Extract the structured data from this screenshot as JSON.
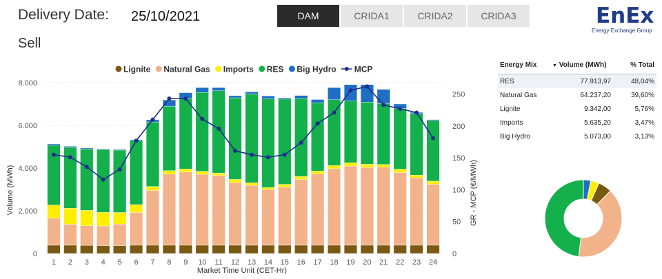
{
  "header": {
    "delivery_label": "Delivery Date:",
    "delivery_date": "25/10/2021",
    "market_side": "Sell"
  },
  "tabs": [
    {
      "label": "DAM",
      "active": true
    },
    {
      "label": "CRIDA1",
      "active": false
    },
    {
      "label": "CRIDA2",
      "active": false
    },
    {
      "label": "CRIDA3",
      "active": false
    }
  ],
  "logo": {
    "word": "EnEx",
    "tagline": "Energy Exchange Group"
  },
  "colors": {
    "lignite": "#7a5a12",
    "natural_gas": "#f2b28a",
    "imports": "#ffee00",
    "res": "#13b04c",
    "big_hydro": "#1e6fc4",
    "mcp": "#1f2d8f",
    "accent_tab": "#2b2b2b"
  },
  "chart_data": {
    "type": "bar",
    "stacked": true,
    "xlabel": "Market Time Unit (CET-Hr)",
    "ylabel": "Volume (MWh)",
    "y2label": "GR - MCP (€/MWh)",
    "ylim": [
      0,
      8000
    ],
    "y2lim": [
      0,
      268
    ],
    "yticks": [
      "0",
      "2.000",
      "4.000",
      "6.000",
      "8.000"
    ],
    "y2ticks": [
      "0",
      "50",
      "100",
      "150",
      "200",
      "250"
    ],
    "legend_position": "top",
    "categories": [
      "1",
      "2",
      "3",
      "4",
      "5",
      "6",
      "7",
      "8",
      "9",
      "10",
      "11",
      "12",
      "13",
      "14",
      "15",
      "16",
      "17",
      "18",
      "19",
      "20",
      "21",
      "22",
      "23",
      "24"
    ],
    "series": [
      {
        "name": "Lignite",
        "key": "lignite",
        "values": [
          390,
          390,
          380,
          370,
          370,
          390,
          390,
          390,
          390,
          390,
          390,
          390,
          390,
          390,
          390,
          390,
          390,
          390,
          390,
          390,
          390,
          390,
          390,
          390
        ]
      },
      {
        "name": "Natural Gas",
        "key": "natural_gas",
        "values": [
          1260,
          980,
          920,
          920,
          1010,
          1530,
          2570,
          3330,
          3430,
          3320,
          3260,
          2930,
          2800,
          2600,
          2720,
          3080,
          3330,
          3580,
          3700,
          3640,
          3650,
          3400,
          3150,
          2850
        ]
      },
      {
        "name": "Imports",
        "key": "imports",
        "values": [
          620,
          750,
          720,
          640,
          540,
          370,
          180,
          160,
          140,
          140,
          120,
          150,
          120,
          100,
          130,
          140,
          140,
          150,
          160,
          150,
          130,
          160,
          130,
          150
        ]
      },
      {
        "name": "RES",
        "key": "res",
        "values": [
          2800,
          2850,
          2880,
          2930,
          2920,
          3000,
          3020,
          3020,
          3300,
          3690,
          3850,
          3820,
          4170,
          4150,
          3990,
          3650,
          3200,
          3080,
          2890,
          2910,
          2860,
          2850,
          2880,
          2840
        ]
      },
      {
        "name": "Big Hydro",
        "key": "big_hydro",
        "values": [
          60,
          50,
          40,
          40,
          40,
          40,
          100,
          290,
          270,
          230,
          150,
          100,
          90,
          140,
          60,
          140,
          150,
          570,
          770,
          820,
          660,
          200,
          60,
          40
        ]
      }
    ],
    "line_series": {
      "name": "MCP",
      "axis": "secondary",
      "values": [
        155,
        151,
        136,
        116,
        132,
        177,
        210,
        243,
        243,
        211,
        196,
        161,
        155,
        151,
        155,
        174,
        204,
        221,
        256,
        262,
        233,
        227,
        221,
        181
      ]
    }
  },
  "energy_mix": {
    "columns": [
      "Energy Mix",
      "Volume (MWh)",
      "% Total"
    ],
    "rows": [
      {
        "name": "RES",
        "volume": "77.913,97",
        "pct": "48,04%",
        "share": 48.04,
        "key": "res"
      },
      {
        "name": "Natural Gas",
        "volume": "64.237,20",
        "pct": "39,60%",
        "share": 39.6,
        "key": "natural_gas"
      },
      {
        "name": "Lignite",
        "volume": "9.342,00",
        "pct": "5,76%",
        "share": 5.76,
        "key": "lignite"
      },
      {
        "name": "Imports",
        "volume": "5.635,20",
        "pct": "3,47%",
        "share": 3.47,
        "key": "imports"
      },
      {
        "name": "Big Hydro",
        "volume": "5.073,00",
        "pct": "3,13%",
        "share": 3.13,
        "key": "big_hydro"
      }
    ]
  }
}
